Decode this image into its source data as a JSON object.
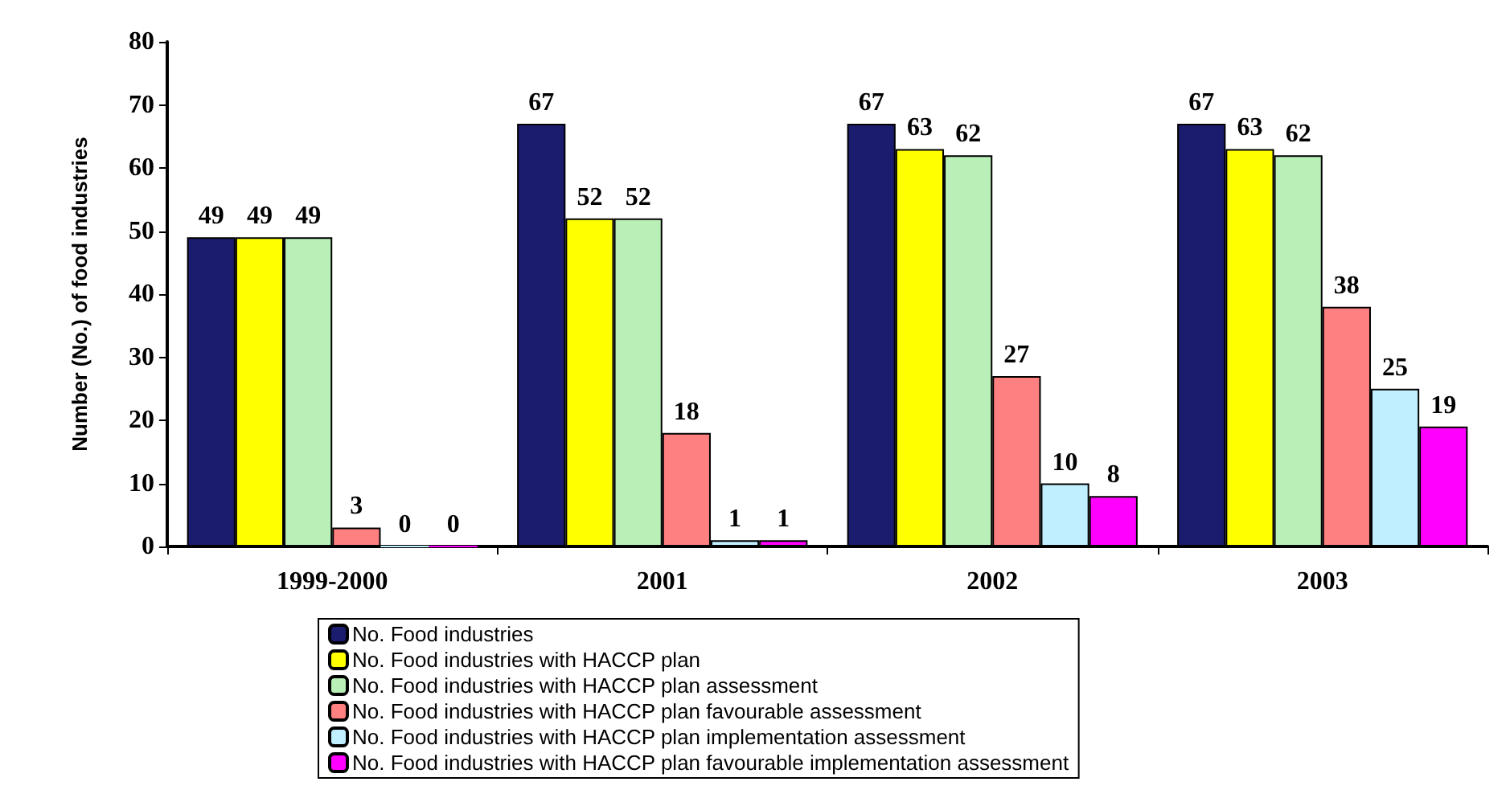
{
  "chart_data": {
    "type": "bar",
    "ylabel": "Number (No.) of food industries",
    "categories": [
      "1999-2000",
      "2001",
      "2002",
      "2003"
    ],
    "series": [
      {
        "name": "No. Food industries",
        "color": "#1c1c6e",
        "values": [
          49,
          67,
          67,
          67
        ]
      },
      {
        "name": "No. Food industries with HACCP plan",
        "color": "#ffff00",
        "values": [
          49,
          52,
          63,
          63
        ]
      },
      {
        "name": "No. Food industries with HACCP plan assessment",
        "color": "#b8f0b8",
        "values": [
          49,
          52,
          62,
          62
        ]
      },
      {
        "name": "No. Food industries with HACCP plan favourable assessment",
        "color": "#ff8080",
        "values": [
          3,
          18,
          27,
          38
        ]
      },
      {
        "name": "No. Food industries with HACCP plan implementation assessment",
        "color": "#c0f0ff",
        "values": [
          0,
          1,
          10,
          25
        ]
      },
      {
        "name": "No. Food industries with HACCP plan favourable implementation assessment",
        "color": "#ff00ff",
        "values": [
          0,
          1,
          8,
          19
        ]
      }
    ],
    "ylim": [
      0,
      80
    ],
    "yticks": [
      0,
      10,
      20,
      30,
      40,
      50,
      60,
      70,
      80
    ],
    "grid": false,
    "legend": "bottom",
    "data_labels": true
  }
}
